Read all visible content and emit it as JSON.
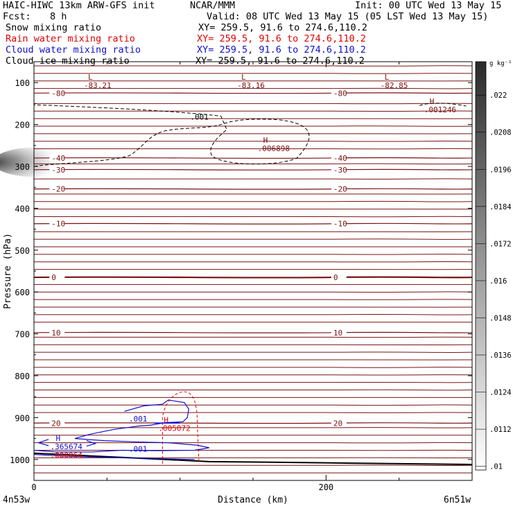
{
  "header": {
    "model": "HAIC-HIWC 13km ARW-GFS init",
    "org": "NCAR/MMM",
    "init": "Init: 00 UTC Wed 13 May 15",
    "fcst_label": "Fcst:",
    "fcst_value": "8 h",
    "valid": "Valid: 08 UTC Wed 13 May 15 (05 LST Wed 13 May 15)",
    "fields": [
      {
        "name": "Snow mixing ratio",
        "range": "XY= 259.5, 91.6 to 274.6,110.2",
        "color": "#000000"
      },
      {
        "name": "Rain water mixing ratio",
        "range": "XY= 259.5, 91.6 to 274.6,110.2",
        "color": "#e00000"
      },
      {
        "name": "Cloud water mixing ratio",
        "range": "XY= 259.5, 91.6 to 274.6,110.2",
        "color": "#1010d0"
      },
      {
        "name": "Cloud ice mixing ratio",
        "range": "XY= 259.5, 91.6 to 274.6,110.2",
        "color": "#000000"
      }
    ]
  },
  "chart_data": {
    "type": "contour cross-section",
    "xlabel": "Distance (km)",
    "ylabel": "Pressure (hPa)",
    "xlim": [
      0,
      300
    ],
    "ylim": [
      1050,
      50
    ],
    "x_ticks": [
      0,
      200
    ],
    "y_ticks": [
      100,
      200,
      300,
      400,
      500,
      600,
      700,
      800,
      900,
      1000
    ],
    "x_endpoint_labels": [
      "4n53w",
      "6n51w"
    ],
    "colorbar": {
      "unit": "g kg⁻¹",
      "ticks": [
        ".022",
        ".0208",
        ".0196",
        ".0184",
        ".0172",
        ".016",
        ".0148",
        ".0136",
        ".0124",
        ".0112",
        ".01"
      ]
    },
    "temperature_isotherms": [
      {
        "label": "-80",
        "p": 125
      },
      {
        "label": "-40",
        "p": 280
      },
      {
        "label": "-30",
        "p": 308
      },
      {
        "label": "-20",
        "p": 354
      },
      {
        "label": "-10",
        "p": 437
      },
      {
        "label": "0",
        "p": 565
      },
      {
        "label": "10",
        "p": 697
      },
      {
        "label": "20",
        "p": 913
      }
    ],
    "extrema": [
      {
        "type": "L",
        "value": "-83.21",
        "x": 37,
        "p": 100
      },
      {
        "type": "L",
        "value": "-83.16",
        "x": 142,
        "p": 100
      },
      {
        "type": "L",
        "value": "-82.85",
        "x": 240,
        "p": 100
      },
      {
        "type": "H",
        "value": ".001246",
        "x": 270,
        "p": 158
      },
      {
        "type": "H",
        "value": ".006898",
        "x": 156,
        "p": 250
      },
      {
        "type": "H",
        "value": ".005072",
        "x": 88,
        "p": 918,
        "color": "#e00000"
      },
      {
        "type": "H",
        "value": ".365674",
        "x": 14,
        "p": 962,
        "color": "#1010d0"
      },
      {
        "type": "",
        "value": ".000064",
        "x": 14,
        "p": 983,
        "color": "#e00000"
      }
    ],
    "contour_labels": [
      {
        "value": ".001",
        "x": 107,
        "p": 182,
        "color": "#000000"
      },
      {
        "value": ".001",
        "x": 65,
        "p": 903,
        "color": "#1010d0"
      },
      {
        "value": ".001",
        "x": 65,
        "p": 975,
        "color": "#1010d0"
      }
    ],
    "snow_max_g_per_kg": 0.022,
    "snow_max_location": {
      "x": 0,
      "p": 290
    }
  }
}
